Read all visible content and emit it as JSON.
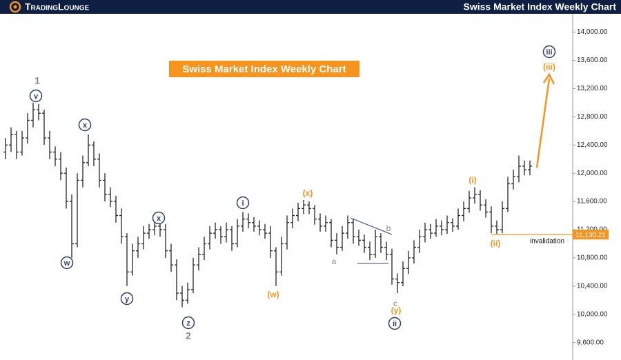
{
  "chart_data": {
    "type": "ohlc",
    "brand": "TradingLounge",
    "title": "Swiss Market Index Weekly Chart",
    "ylim": [
      9450,
      14260
    ],
    "yticks": [
      {
        "value": 9600,
        "label": "9,600.00"
      },
      {
        "value": 10000,
        "label": "10,000.00"
      },
      {
        "value": 10400,
        "label": "10,400.00"
      },
      {
        "value": 10800,
        "label": "10,800.00"
      },
      {
        "value": 11200,
        "label": "11,200.00"
      },
      {
        "value": 11600,
        "label": "11,600.00"
      },
      {
        "value": 12000,
        "label": "12,000.00"
      },
      {
        "value": 12400,
        "label": "12,400.00"
      },
      {
        "value": 12800,
        "label": "12,800.00"
      },
      {
        "value": 13200,
        "label": "13,200.00"
      },
      {
        "value": 13600,
        "label": "13,600.00"
      },
      {
        "value": 14000,
        "label": "14,000.00"
      }
    ],
    "color": "#222222",
    "open": [
      12300,
      12400,
      12550,
      12300,
      12500,
      12750,
      12900,
      12850,
      12500,
      12300,
      12200,
      12000,
      11600,
      11000,
      11900,
      12150,
      12400,
      12200,
      11900,
      11700,
      11600,
      11400,
      11100,
      10600,
      10900,
      11000,
      11150,
      11200,
      11250,
      11200,
      10900,
      10700,
      10300,
      10200,
      10350,
      10700,
      10850,
      11000,
      11150,
      11200,
      11100,
      11200,
      11000,
      11250,
      11350,
      11300,
      11250,
      11200,
      11150,
      10900,
      10600,
      11000,
      11300,
      11400,
      11500,
      11550,
      11500,
      11350,
      11250,
      11300,
      11050,
      10950,
      11150,
      11300,
      11100,
      11050,
      10950,
      10850,
      11100,
      10950,
      10850,
      10500,
      10450,
      10650,
      10800,
      10950,
      11100,
      11200,
      11150,
      11250,
      11200,
      11300,
      11250,
      11400,
      11500,
      11650,
      11700,
      11550,
      11450,
      11250,
      11200,
      11500,
      11850,
      11950,
      12100,
      12050
    ],
    "high": [
      12500,
      12650,
      12600,
      12600,
      12850,
      13000,
      12980,
      12900,
      12600,
      12380,
      12300,
      12080,
      11700,
      12000,
      12250,
      12550,
      12450,
      12280,
      12000,
      11800,
      11680,
      11500,
      11150,
      11000,
      11100,
      11250,
      11280,
      11350,
      11300,
      11280,
      11000,
      10780,
      10400,
      10450,
      10800,
      10950,
      11100,
      11250,
      11300,
      11250,
      11300,
      11250,
      11350,
      11450,
      11430,
      11380,
      11330,
      11280,
      11250,
      10950,
      11100,
      11400,
      11500,
      11580,
      11620,
      11600,
      11550,
      11430,
      11400,
      11350,
      11150,
      11250,
      11400,
      11350,
      11200,
      11130,
      11030,
      11200,
      11150,
      11030,
      10930,
      10580,
      10750,
      10900,
      11050,
      11200,
      11300,
      11280,
      11350,
      11330,
      11400,
      11360,
      11500,
      11600,
      11750,
      11800,
      11760,
      11630,
      11530,
      11330,
      11600,
      11950,
      12050,
      12250,
      12180,
      12180
    ],
    "low": [
      12200,
      12300,
      12200,
      12250,
      12420,
      12650,
      12750,
      12400,
      12200,
      12100,
      11900,
      11500,
      10800,
      10950,
      11800,
      12100,
      12100,
      11800,
      11600,
      11520,
      11300,
      11000,
      10400,
      10550,
      10800,
      10920,
      11070,
      11120,
      11100,
      10800,
      10600,
      10200,
      10100,
      10150,
      10300,
      10620,
      10770,
      10920,
      11070,
      11000,
      11020,
      10900,
      10950,
      11170,
      11220,
      11170,
      11120,
      11070,
      10800,
      10400,
      10550,
      10920,
      11220,
      11320,
      11420,
      11420,
      11270,
      11170,
      11170,
      10950,
      10850,
      10900,
      11070,
      11000,
      10970,
      10870,
      10770,
      10800,
      10870,
      10770,
      10420,
      10300,
      10400,
      10570,
      10720,
      10870,
      11020,
      11070,
      11100,
      11120,
      11140,
      11170,
      11200,
      11320,
      11440,
      11570,
      11470,
      11370,
      11150,
      11140,
      11150,
      11450,
      11770,
      11870,
      11970,
      11970
    ],
    "close": [
      12400,
      12550,
      12300,
      12500,
      12750,
      12900,
      12850,
      12500,
      12300,
      12200,
      12000,
      11600,
      11000,
      11900,
      12150,
      12400,
      12200,
      11900,
      11700,
      11600,
      11400,
      11100,
      10600,
      10900,
      11000,
      11150,
      11200,
      11250,
      11200,
      10900,
      10700,
      10300,
      10200,
      10350,
      10700,
      10850,
      11000,
      11150,
      11200,
      11100,
      11200,
      11000,
      11250,
      11350,
      11300,
      11250,
      11200,
      11150,
      10900,
      10600,
      11000,
      11300,
      11400,
      11500,
      11550,
      11500,
      11350,
      11250,
      11300,
      11050,
      10950,
      11150,
      11300,
      11100,
      11050,
      10950,
      10850,
      11100,
      10950,
      10850,
      10500,
      10450,
      10650,
      10800,
      10950,
      11100,
      11200,
      11150,
      11250,
      11200,
      11300,
      11250,
      11400,
      11500,
      11650,
      11700,
      11550,
      11450,
      11250,
      11200,
      11500,
      11850,
      11950,
      12100,
      12050,
      12100
    ],
    "invalidation_level": {
      "value": 11130.21,
      "label": "11,130.21"
    },
    "annotations": [
      "1",
      "v",
      "w",
      "x",
      "y",
      "x",
      "z",
      "2",
      "i",
      "(w)",
      "(x)",
      "a",
      "b",
      "c",
      "(y)",
      "ii",
      "(i)",
      "(ii)",
      "(iii)",
      "iii",
      "invalidation"
    ]
  }
}
